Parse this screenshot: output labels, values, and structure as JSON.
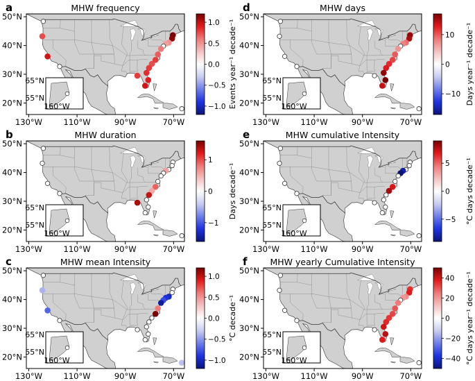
{
  "axes": {
    "lat_labels": [
      "50°N",
      "40°N",
      "30°N",
      "20°N"
    ],
    "lat_values": [
      50,
      40,
      30,
      20
    ],
    "lon_labels": [
      "130°W",
      "110°W",
      "90°W",
      "70°W"
    ],
    "lon_values": [
      -130,
      -110,
      -90,
      -70
    ],
    "extent": {
      "lon_min": -131,
      "lon_max": -65.5,
      "lat_min": 16,
      "lat_max": 51
    },
    "inset": {
      "lat_labels": [
        "65°N",
        "55°N"
      ],
      "lon_label": "160°W"
    }
  },
  "colors": {
    "land": "#d0d0d0",
    "ocean": "#ffffff",
    "coast": "#333333",
    "hollow_marker_edge": "#444444",
    "cmap": [
      "#0a1478",
      "#1e32e0",
      "#6e7ee8",
      "#c8cdf0",
      "#ffffff",
      "#f4c2c2",
      "#ef7a7a",
      "#e31a1c",
      "#780000"
    ]
  },
  "chart_data": [
    {
      "type": "scatter",
      "label": "a",
      "title": "MHW frequency",
      "colorbar": {
        "label": "Events year⁻¹ decade⁻¹",
        "range": [
          -1.2,
          1.2
        ],
        "ticks": [
          1.0,
          0.5,
          0.0,
          -0.5,
          -1.0
        ],
        "tick_labels": [
          "1.0",
          "0.5",
          "0.0",
          "−0.5",
          "−1.0"
        ]
      },
      "points": [
        {
          "lon": -124.0,
          "lat": 48.4,
          "v": null
        },
        {
          "lon": -124.4,
          "lat": 43.2,
          "v": 0.75
        },
        {
          "lon": -122.2,
          "lat": 36.2,
          "v": 0.95
        },
        {
          "lon": -117.2,
          "lat": 32.7,
          "v": null
        },
        {
          "lon": -70.3,
          "lat": 43.6,
          "v": 1.2
        },
        {
          "lon": -70.6,
          "lat": 42.4,
          "v": 1.15
        },
        {
          "lon": -72.0,
          "lat": 41.0,
          "v": 0.5
        },
        {
          "lon": -73.2,
          "lat": 40.6,
          "v": 0.45
        },
        {
          "lon": -74.2,
          "lat": 39.8,
          "v": null
        },
        {
          "lon": -75.2,
          "lat": 38.8,
          "v": 0.6
        },
        {
          "lon": -76.5,
          "lat": 36.9,
          "v": 0.7
        },
        {
          "lon": -77.5,
          "lat": 35.0,
          "v": 0.8
        },
        {
          "lon": -79.0,
          "lat": 33.6,
          "v": 0.75
        },
        {
          "lon": -80.2,
          "lat": 32.2,
          "v": 0.8
        },
        {
          "lon": -81.2,
          "lat": 30.5,
          "v": 0.85
        },
        {
          "lon": -80.5,
          "lat": 28.0,
          "v": 0.9
        },
        {
          "lon": -85.0,
          "lat": 29.5,
          "v": 0.8
        },
        {
          "lon": -81.8,
          "lat": 26.0,
          "v": 0.95
        },
        {
          "lon": -66.6,
          "lat": 18.0,
          "v": null
        }
      ]
    },
    {
      "type": "scatter",
      "label": "b",
      "title": "MHW duration",
      "colorbar": {
        "label": "Days decade⁻¹",
        "range": [
          -1.6,
          1.6
        ],
        "ticks": [
          1,
          0,
          -1
        ],
        "tick_labels": [
          "1",
          "0",
          "−1"
        ]
      },
      "points": [
        {
          "lon": -124.0,
          "lat": 48.4,
          "v": null
        },
        {
          "lon": -124.4,
          "lat": 43.2,
          "v": null
        },
        {
          "lon": -122.2,
          "lat": 36.2,
          "v": null
        },
        {
          "lon": -117.2,
          "lat": 32.7,
          "v": null
        },
        {
          "lon": -70.3,
          "lat": 43.6,
          "v": null
        },
        {
          "lon": -70.6,
          "lat": 42.4,
          "v": null
        },
        {
          "lon": -72.0,
          "lat": 41.0,
          "v": null
        },
        {
          "lon": -73.2,
          "lat": 40.6,
          "v": 0.6
        },
        {
          "lon": -74.2,
          "lat": 39.8,
          "v": null
        },
        {
          "lon": -75.2,
          "lat": 38.8,
          "v": null
        },
        {
          "lon": -76.5,
          "lat": 36.9,
          "v": null
        },
        {
          "lon": -77.5,
          "lat": 35.0,
          "v": 0.9
        },
        {
          "lon": -79.0,
          "lat": 33.6,
          "v": 0.55
        },
        {
          "lon": -80.2,
          "lat": 32.2,
          "v": 1.3
        },
        {
          "lon": -81.2,
          "lat": 30.5,
          "v": null
        },
        {
          "lon": -80.5,
          "lat": 28.0,
          "v": null
        },
        {
          "lon": -85.0,
          "lat": 29.5,
          "v": 1.4
        },
        {
          "lon": -81.8,
          "lat": 26.0,
          "v": null
        },
        {
          "lon": -66.6,
          "lat": 18.0,
          "v": null
        }
      ]
    },
    {
      "type": "scatter",
      "label": "c",
      "title": "MHW mean Intensity",
      "colorbar": {
        "label": "°C decade⁻¹",
        "range": [
          -1.2,
          1.2
        ],
        "ticks": [
          1.0,
          0.5,
          0.0,
          -0.5,
          -1.0
        ],
        "tick_labels": [
          "1.0",
          "0.5",
          "0.0",
          "−0.5",
          "−1.0"
        ]
      },
      "points": [
        {
          "lon": -124.0,
          "lat": 48.4,
          "v": null
        },
        {
          "lon": -124.4,
          "lat": 43.2,
          "v": -0.4
        },
        {
          "lon": -122.2,
          "lat": 36.2,
          "v": -0.7
        },
        {
          "lon": -117.2,
          "lat": 32.7,
          "v": null
        },
        {
          "lon": -70.3,
          "lat": 43.6,
          "v": null
        },
        {
          "lon": -70.6,
          "lat": 42.4,
          "v": null
        },
        {
          "lon": -72.0,
          "lat": 41.0,
          "v": -1.0
        },
        {
          "lon": -73.2,
          "lat": 40.6,
          "v": -0.9
        },
        {
          "lon": -74.2,
          "lat": 39.8,
          "v": -0.8
        },
        {
          "lon": -75.2,
          "lat": 38.8,
          "v": -1.1
        },
        {
          "lon": -76.5,
          "lat": 36.9,
          "v": 0.6
        },
        {
          "lon": -77.5,
          "lat": 35.0,
          "v": 1.2
        },
        {
          "lon": -79.0,
          "lat": 33.6,
          "v": null
        },
        {
          "lon": -80.2,
          "lat": 32.2,
          "v": null
        },
        {
          "lon": -81.2,
          "lat": 30.5,
          "v": null
        },
        {
          "lon": -80.5,
          "lat": 28.0,
          "v": null
        },
        {
          "lon": -85.0,
          "lat": 29.5,
          "v": null
        },
        {
          "lon": -81.8,
          "lat": 26.0,
          "v": null
        },
        {
          "lon": -66.6,
          "lat": 18.0,
          "v": -0.35
        }
      ]
    },
    {
      "type": "scatter",
      "label": "d",
      "title": "MHW days",
      "colorbar": {
        "label": "Days year⁻¹ decade⁻¹",
        "range": [
          -17,
          17
        ],
        "ticks": [
          10,
          0,
          -10
        ],
        "tick_labels": [
          "10",
          "0",
          "−10"
        ]
      },
      "points": [
        {
          "lon": -124.0,
          "lat": 48.4,
          "v": null
        },
        {
          "lon": -124.4,
          "lat": 43.2,
          "v": null
        },
        {
          "lon": -122.2,
          "lat": 36.2,
          "v": null
        },
        {
          "lon": -117.2,
          "lat": 32.7,
          "v": null
        },
        {
          "lon": -70.3,
          "lat": 43.6,
          "v": 16
        },
        {
          "lon": -70.6,
          "lat": 42.4,
          "v": 15
        },
        {
          "lon": -72.0,
          "lat": 41.0,
          "v": 9
        },
        {
          "lon": -73.2,
          "lat": 40.6,
          "v": 8
        },
        {
          "lon": -74.2,
          "lat": 39.8,
          "v": null
        },
        {
          "lon": -75.2,
          "lat": 38.8,
          "v": 7
        },
        {
          "lon": -76.5,
          "lat": 36.9,
          "v": 10
        },
        {
          "lon": -77.5,
          "lat": 35.0,
          "v": 11
        },
        {
          "lon": -79.0,
          "lat": 33.6,
          "v": 12
        },
        {
          "lon": -80.2,
          "lat": 32.2,
          "v": 13
        },
        {
          "lon": -81.2,
          "lat": 30.5,
          "v": 16
        },
        {
          "lon": -80.5,
          "lat": 28.0,
          "v": 17
        },
        {
          "lon": -85.0,
          "lat": 29.5,
          "v": null
        },
        {
          "lon": -81.8,
          "lat": 26.0,
          "v": 14
        },
        {
          "lon": -66.6,
          "lat": 18.0,
          "v": null
        }
      ]
    },
    {
      "type": "scatter",
      "label": "e",
      "title": "MHW cumulative Intensity",
      "colorbar": {
        "label": "°C days decade⁻¹",
        "range": [
          -9,
          9
        ],
        "ticks": [
          5,
          0,
          -5
        ],
        "tick_labels": [
          "5",
          "0",
          "−5"
        ]
      },
      "points": [
        {
          "lon": -124.0,
          "lat": 48.4,
          "v": null
        },
        {
          "lon": -124.4,
          "lat": 43.2,
          "v": null
        },
        {
          "lon": -122.2,
          "lat": 36.2,
          "v": null
        },
        {
          "lon": -117.2,
          "lat": 32.7,
          "v": null
        },
        {
          "lon": -70.3,
          "lat": 43.6,
          "v": null
        },
        {
          "lon": -70.6,
          "lat": 42.4,
          "v": null
        },
        {
          "lon": -72.0,
          "lat": 41.0,
          "v": null
        },
        {
          "lon": -73.2,
          "lat": 40.6,
          "v": -8
        },
        {
          "lon": -74.2,
          "lat": 39.8,
          "v": -9
        },
        {
          "lon": -75.2,
          "lat": 38.8,
          "v": null
        },
        {
          "lon": -76.5,
          "lat": 36.9,
          "v": null
        },
        {
          "lon": -77.5,
          "lat": 35.0,
          "v": 7
        },
        {
          "lon": -79.0,
          "lat": 33.6,
          "v": 8
        },
        {
          "lon": -80.2,
          "lat": 32.2,
          "v": null
        },
        {
          "lon": -81.2,
          "lat": 30.5,
          "v": null
        },
        {
          "lon": -80.5,
          "lat": 28.0,
          "v": null
        },
        {
          "lon": -85.0,
          "lat": 29.5,
          "v": null
        },
        {
          "lon": -81.8,
          "lat": 26.0,
          "v": null
        },
        {
          "lon": -66.6,
          "lat": 18.0,
          "v": null
        }
      ]
    },
    {
      "type": "scatter",
      "label": "f",
      "title": "MHW yearly Cumulative Intensity",
      "colorbar": {
        "label": "°C days year⁻¹ decade⁻¹",
        "range": [
          -50,
          50
        ],
        "ticks": [
          40,
          20,
          0,
          -20,
          -40
        ],
        "tick_labels": [
          "40",
          "20",
          "0",
          "−20",
          "−40"
        ]
      },
      "points": [
        {
          "lon": -124.0,
          "lat": 48.4,
          "v": null
        },
        {
          "lon": -124.4,
          "lat": 43.2,
          "v": null
        },
        {
          "lon": -122.2,
          "lat": 36.2,
          "v": null
        },
        {
          "lon": -117.2,
          "lat": 32.7,
          "v": null
        },
        {
          "lon": -70.3,
          "lat": 43.6,
          "v": 35
        },
        {
          "lon": -70.6,
          "lat": 42.4,
          "v": 38
        },
        {
          "lon": -72.0,
          "lat": 41.0,
          "v": 22
        },
        {
          "lon": -73.2,
          "lat": 40.6,
          "v": 20
        },
        {
          "lon": -74.2,
          "lat": 39.8,
          "v": null
        },
        {
          "lon": -75.2,
          "lat": 38.8,
          "v": 25
        },
        {
          "lon": -76.5,
          "lat": 36.9,
          "v": 30
        },
        {
          "lon": -77.5,
          "lat": 35.0,
          "v": 32
        },
        {
          "lon": -79.0,
          "lat": 33.6,
          "v": 34
        },
        {
          "lon": -80.2,
          "lat": 32.2,
          "v": 36
        },
        {
          "lon": -81.2,
          "lat": 30.5,
          "v": 40
        },
        {
          "lon": -80.5,
          "lat": 28.0,
          "v": 42
        },
        {
          "lon": -85.0,
          "lat": 29.5,
          "v": null
        },
        {
          "lon": -81.8,
          "lat": 26.0,
          "v": 38
        },
        {
          "lon": -66.6,
          "lat": 18.0,
          "v": null
        }
      ]
    }
  ]
}
